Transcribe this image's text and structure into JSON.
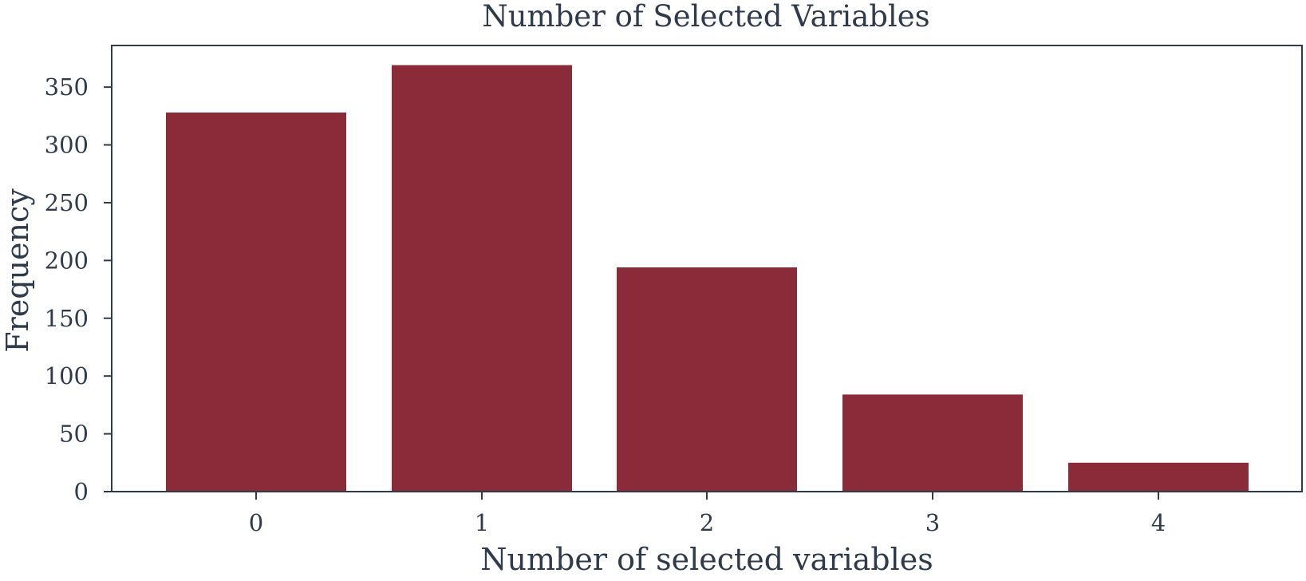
{
  "chart_data": {
    "type": "bar",
    "title": "Number of Selected Variables",
    "xlabel": "Number of selected variables",
    "ylabel": "Frequency",
    "categories": [
      "0",
      "1",
      "2",
      "3",
      "4"
    ],
    "values": [
      328,
      369,
      194,
      84,
      25
    ],
    "ylim": [
      0,
      386
    ],
    "yticks": [
      0,
      50,
      100,
      150,
      200,
      250,
      300,
      350
    ],
    "grid": false,
    "colors": {
      "bar": "#8b2b39",
      "axis": "#2f3b4a",
      "text": "#2f3b4a"
    }
  }
}
